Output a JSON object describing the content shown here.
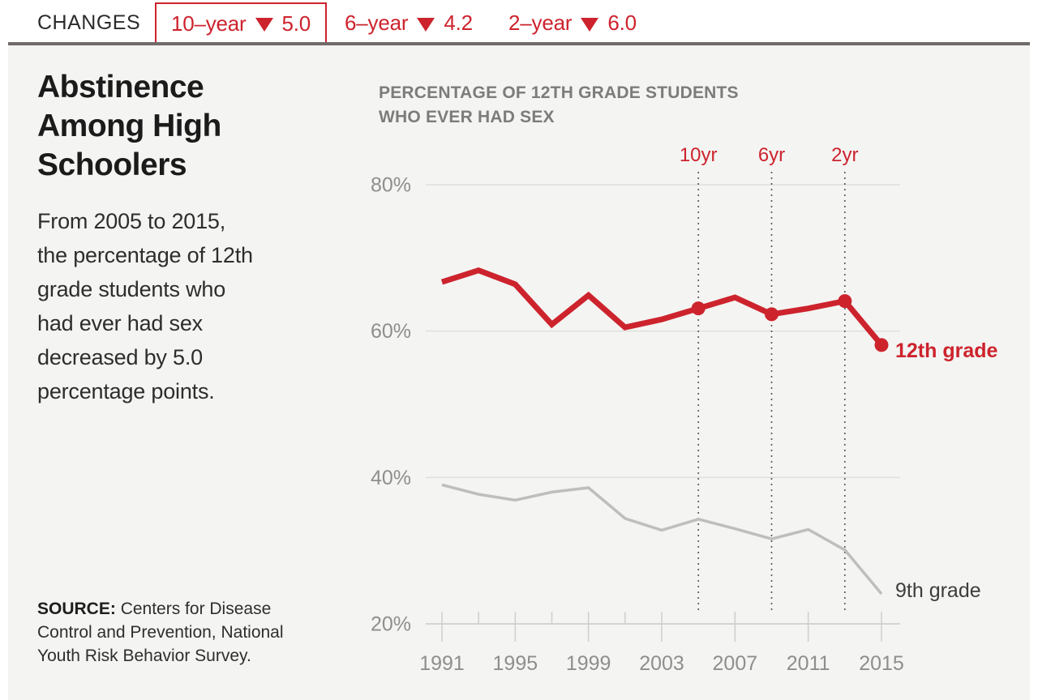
{
  "header": {
    "label": "CHANGES",
    "changes": [
      {
        "period": "10–year",
        "direction": "down",
        "value": "5.0",
        "boxed": true
      },
      {
        "period": "6–year",
        "direction": "down",
        "value": "4.2",
        "boxed": false
      },
      {
        "period": "2–year",
        "direction": "down",
        "value": "6.0",
        "boxed": false
      }
    ]
  },
  "panel": {
    "title_lines": [
      "Abstinence",
      "Among High",
      "Schoolers"
    ],
    "description_lines": [
      "From 2005 to 2015,",
      "the percentage of 12th",
      "grade students who",
      "had ever had sex",
      "decreased by 5.0",
      "percentage points."
    ],
    "source_label": "SOURCE:",
    "source_text": "Centers for Disease Control and Prevention, National Youth Risk Behavior Survey."
  },
  "chart_data": {
    "type": "line",
    "title": "PERCENTAGE OF 12TH GRADE STUDENTS WHO EVER HAD SEX",
    "title_lines": [
      "PERCENTAGE OF 12TH GRADE STUDENTS",
      "WHO EVER HAD SEX"
    ],
    "x": [
      1991,
      1993,
      1995,
      1997,
      1999,
      2001,
      2003,
      2005,
      2007,
      2009,
      2011,
      2013,
      2015
    ],
    "x_tick_labels": [
      1991,
      1995,
      1999,
      2003,
      2007,
      2011,
      2015
    ],
    "y_ticks": [
      80,
      60,
      40,
      20
    ],
    "y_tick_suffix": "%",
    "ylim": [
      20,
      80
    ],
    "grid": "horizontal",
    "legend": "direct-labels-at-line-end",
    "series": [
      {
        "name": "12th grade",
        "color": "#cd232d",
        "label_color": "#cd232d",
        "values": [
          66.7,
          68.3,
          66.4,
          60.9,
          64.9,
          60.5,
          61.6,
          63.1,
          64.6,
          62.3,
          63.1,
          64.1,
          58.1
        ],
        "marker_years": [
          2005,
          2009,
          2013,
          2015
        ],
        "label_dy": 15
      },
      {
        "name": "9th grade",
        "color": "#bebebc",
        "label_color": "#3d3d3d",
        "values": [
          39.0,
          37.7,
          36.9,
          38.0,
          38.6,
          34.4,
          32.8,
          34.3,
          33.0,
          31.6,
          32.9,
          30.1,
          24.1
        ],
        "marker_years": [],
        "label_dy": 4
      }
    ],
    "annotations": [
      {
        "label": "10yr",
        "year": 2005
      },
      {
        "label": "6yr",
        "year": 2009
      },
      {
        "label": "2yr",
        "year": 2013
      }
    ]
  },
  "colors": {
    "accent_red": "#cd232d",
    "background": "#f4f4f2",
    "divider": "#6f6b69"
  }
}
